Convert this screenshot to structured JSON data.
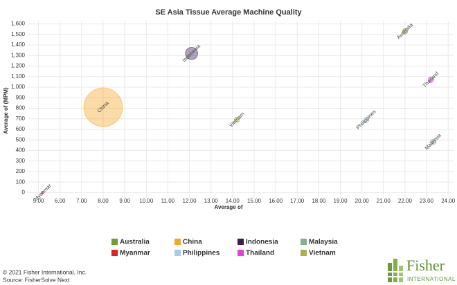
{
  "chart_data": {
    "type": "bubble",
    "title": "SE Asia Tissue Average Machine Quality",
    "xlabel": "Average of",
    "ylabel": "Average of (MPM)",
    "xlim": [
      4.5,
      24.25
    ],
    "ylim": [
      -50,
      1630
    ],
    "xticks": [
      {
        "value": 5,
        "label": "5.00"
      },
      {
        "value": 6,
        "label": "6.00"
      },
      {
        "value": 7,
        "label": "7.00"
      },
      {
        "value": 8,
        "label": "8.00"
      },
      {
        "value": 9,
        "label": "9.00"
      },
      {
        "value": 10,
        "label": "10.00"
      },
      {
        "value": 11,
        "label": "11.00"
      },
      {
        "value": 12,
        "label": "12.00"
      },
      {
        "value": 13,
        "label": "13.00"
      },
      {
        "value": 14,
        "label": "14.00"
      },
      {
        "value": 15,
        "label": "15.00"
      },
      {
        "value": 16,
        "label": "16.00"
      },
      {
        "value": 17,
        "label": "17.00"
      },
      {
        "value": 18,
        "label": "18.00"
      },
      {
        "value": 19,
        "label": "19.00"
      },
      {
        "value": 20,
        "label": "20.00"
      },
      {
        "value": 21,
        "label": "21.00"
      },
      {
        "value": 22,
        "label": "22.00"
      },
      {
        "value": 23,
        "label": "23.00"
      },
      {
        "value": 24,
        "label": "24.00"
      }
    ],
    "yticks": [
      0,
      100,
      200,
      300,
      400,
      500,
      600,
      700,
      800,
      900,
      {
        "value": 1000,
        "label": "1,000"
      },
      {
        "value": 1100,
        "label": "1,100"
      },
      {
        "value": 1200,
        "label": "1,200"
      },
      {
        "value": 1300,
        "label": "1,300"
      },
      {
        "value": 1400,
        "label": "1,400"
      },
      {
        "value": 1500,
        "label": "1,500"
      },
      {
        "value": 1600,
        "label": "1,600"
      }
    ],
    "grid": true,
    "series": [
      {
        "name": "Australia",
        "color": "#6e9c36",
        "x": [
          22.0
        ],
        "values": [
          1530
        ],
        "sizes": [
          2
        ]
      },
      {
        "name": "China",
        "color": "#f5a623",
        "x": [
          8.0
        ],
        "values": [
          810
        ],
        "sizes": [
          100
        ]
      },
      {
        "name": "Indonesia",
        "color": "#3b1c4e",
        "x": [
          12.1
        ],
        "values": [
          1320
        ],
        "sizes": [
          10
        ]
      },
      {
        "name": "Malaysia",
        "color": "#7fb38f",
        "x": [
          23.3
        ],
        "values": [
          480
        ],
        "sizes": [
          2
        ]
      },
      {
        "name": "Myanmar",
        "color": "#e02222",
        "x": [
          5.2
        ],
        "values": [
          0
        ],
        "sizes": [
          0.5
        ]
      },
      {
        "name": "Philippines",
        "color": "#a8cce2",
        "x": [
          20.2
        ],
        "values": [
          690
        ],
        "sizes": [
          2
        ]
      },
      {
        "name": "Thailand",
        "color": "#e23ee2",
        "x": [
          23.2
        ],
        "values": [
          1070
        ],
        "sizes": [
          2
        ]
      },
      {
        "name": "Vietnam",
        "color": "#b3ae4d",
        "x": [
          14.2
        ],
        "values": [
          690
        ],
        "sizes": [
          2
        ]
      }
    ]
  },
  "footer": {
    "copyright": "© 2021 Fisher International, Inc.",
    "source": "Source: FisherSolve Next"
  },
  "logo": {
    "name": "Fisher",
    "subtitle": "INTERNATIONAL"
  }
}
